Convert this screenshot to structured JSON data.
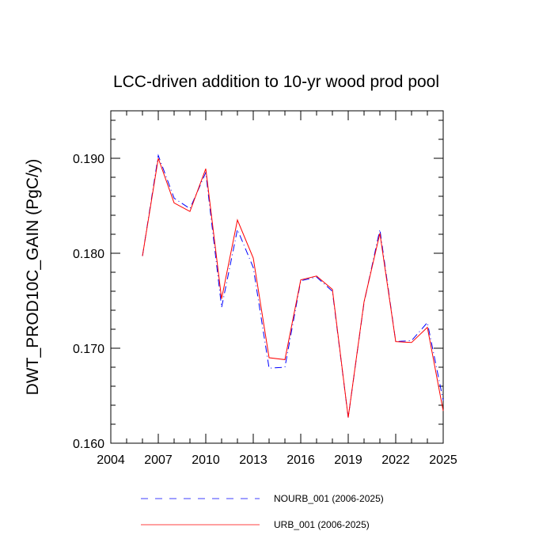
{
  "chart_data": {
    "type": "line",
    "title": "LCC-driven addition to 10-yr wood prod pool",
    "xlabel": "",
    "ylabel": "DWT_PROD10C_GAIN  (PgC/y)",
    "xlim": [
      2004,
      2025
    ],
    "ylim": [
      0.16,
      0.195
    ],
    "xticks": [
      2004,
      2007,
      2010,
      2013,
      2016,
      2019,
      2022,
      2025
    ],
    "xtick_labels": [
      "2004",
      "2007",
      "2010",
      "2013",
      "2016",
      "2019",
      "2022",
      "2025"
    ],
    "yticks": [
      0.16,
      0.17,
      0.18,
      0.19
    ],
    "ytick_labels": [
      "0.160",
      "0.170",
      "0.180",
      "0.190"
    ],
    "grid": false,
    "legend_position": "bottom",
    "x": [
      2006,
      2007,
      2008,
      2009,
      2010,
      2011,
      2012,
      2013,
      2014,
      2015,
      2016,
      2017,
      2018,
      2019,
      2020,
      2021,
      2022,
      2023,
      2024,
      2025
    ],
    "series": [
      {
        "name": "NOURB_001 (2006-2025)",
        "color": "#0000ff",
        "dash": "dash-dot",
        "values": [
          0.1797,
          0.1903,
          0.1858,
          0.1847,
          0.1885,
          0.1743,
          0.1825,
          0.1785,
          0.1679,
          0.168,
          0.1771,
          0.1775,
          0.176,
          0.1627,
          0.1748,
          0.1825,
          0.1707,
          0.1708,
          0.1727,
          0.1645
        ]
      },
      {
        "name": "URB_001 (2006-2025)",
        "color": "#ff0000",
        "dash": "solid",
        "values": [
          0.1797,
          0.19,
          0.1853,
          0.1844,
          0.1889,
          0.1752,
          0.1835,
          0.1795,
          0.169,
          0.1688,
          0.1772,
          0.1776,
          0.1762,
          0.1627,
          0.1749,
          0.1821,
          0.1707,
          0.1706,
          0.1722,
          0.1634
        ]
      }
    ]
  }
}
